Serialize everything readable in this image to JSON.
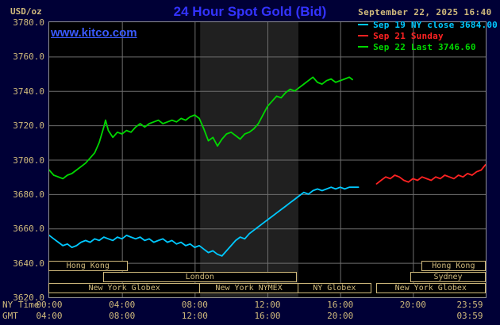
{
  "colors": {
    "bg": "#000036",
    "plot_bg": "#000000",
    "band": "#202020",
    "grid": "#6e6e6e",
    "tan": "#d0ba7c",
    "border_grey": "#909090",
    "title_blue": "#3333ff",
    "link_blue": "#3a5aff"
  },
  "header": {
    "units_label": "USD/oz",
    "title": "24 Hour Spot Gold (Bid)",
    "datetime": "September 22, 2025 16:40",
    "watermark": "www.kitco.com"
  },
  "axes": {
    "y_ticks": [
      {
        "value": 3780,
        "label": "3780.0"
      },
      {
        "value": 3760,
        "label": "3760.0"
      },
      {
        "value": 3740,
        "label": "3740.0"
      },
      {
        "value": 3720,
        "label": "3720.0"
      },
      {
        "value": 3700,
        "label": "3700.0"
      },
      {
        "value": 3680,
        "label": "3680.0"
      },
      {
        "value": 3660,
        "label": "3660.0"
      },
      {
        "value": 3640,
        "label": "3640.0"
      },
      {
        "value": 3620,
        "label": "3620.0"
      }
    ],
    "x_rows": [
      {
        "label": "NY Time",
        "ticks": [
          {
            "hour": 0,
            "text": "00:00"
          },
          {
            "hour": 4,
            "text": "04:00"
          },
          {
            "hour": 8,
            "text": "08:00"
          },
          {
            "hour": 12,
            "text": "12:00"
          },
          {
            "hour": 16,
            "text": "16:00"
          },
          {
            "hour": 20,
            "text": "20:00"
          },
          {
            "hour": 23.983,
            "text": "23:59"
          }
        ]
      },
      {
        "label": "GMT",
        "ticks": [
          {
            "hour": 0,
            "text": "04:00"
          },
          {
            "hour": 4,
            "text": "08:00"
          },
          {
            "hour": 8,
            "text": "12:00"
          },
          {
            "hour": 12,
            "text": "16:00"
          },
          {
            "hour": 16,
            "text": "20:00"
          },
          {
            "hour": 23.983,
            "text": "03:59"
          }
        ]
      }
    ]
  },
  "sessions": {
    "rows": [
      [
        {
          "label": "Hong Kong",
          "start": 0,
          "end": 4.3
        },
        {
          "label": "Hong Kong",
          "start": 20.5,
          "end": 24
        }
      ],
      [
        {
          "label": "London",
          "start": 3.0,
          "end": 13.6
        },
        {
          "label": "Sydney",
          "start": 19.9,
          "end": 24
        }
      ],
      [
        {
          "label": "New York Globex",
          "start": 0,
          "end": 8.3
        },
        {
          "label": "New York NYMEX",
          "start": 8.3,
          "end": 13.7
        },
        {
          "label": "NY Globex",
          "start": 13.7,
          "end": 17.7
        },
        {
          "label": "New York Globex",
          "start": 18.0,
          "end": 24
        }
      ]
    ]
  },
  "chart_data": {
    "type": "line",
    "title": "24 Hour Spot Gold (Bid)",
    "x_axis": "time of day (NY), hours 0-24",
    "ylabel": "USD/oz",
    "xlim": [
      0,
      24
    ],
    "ylim": [
      3620,
      3780
    ],
    "x_gridline_hours": [
      4,
      8,
      12,
      16,
      20
    ],
    "session_band_hours": [
      8.3,
      13.7
    ],
    "legend_position": "top-right",
    "series": [
      {
        "name": "Sep 19 NY close 3684.00",
        "color": "#00c8ff",
        "points": [
          [
            0,
            3656
          ],
          [
            0.25,
            3654
          ],
          [
            0.5,
            3652
          ],
          [
            0.75,
            3650
          ],
          [
            1,
            3651
          ],
          [
            1.25,
            3649
          ],
          [
            1.5,
            3650
          ],
          [
            1.75,
            3652
          ],
          [
            2,
            3653
          ],
          [
            2.25,
            3652
          ],
          [
            2.5,
            3654
          ],
          [
            2.75,
            3653
          ],
          [
            3,
            3655
          ],
          [
            3.25,
            3654
          ],
          [
            3.5,
            3653
          ],
          [
            3.75,
            3655
          ],
          [
            4,
            3654
          ],
          [
            4.25,
            3656
          ],
          [
            4.5,
            3655
          ],
          [
            4.75,
            3654
          ],
          [
            5,
            3655
          ],
          [
            5.25,
            3653
          ],
          [
            5.5,
            3654
          ],
          [
            5.75,
            3652
          ],
          [
            6,
            3653
          ],
          [
            6.25,
            3654
          ],
          [
            6.5,
            3652
          ],
          [
            6.75,
            3653
          ],
          [
            7,
            3651
          ],
          [
            7.25,
            3652
          ],
          [
            7.5,
            3650
          ],
          [
            7.75,
            3651
          ],
          [
            8,
            3649
          ],
          [
            8.25,
            3650
          ],
          [
            8.5,
            3648
          ],
          [
            8.75,
            3646
          ],
          [
            9,
            3647
          ],
          [
            9.25,
            3645
          ],
          [
            9.5,
            3644
          ],
          [
            9.75,
            3647
          ],
          [
            10,
            3650
          ],
          [
            10.25,
            3653
          ],
          [
            10.5,
            3655
          ],
          [
            10.75,
            3654
          ],
          [
            11,
            3657
          ],
          [
            11.25,
            3659
          ],
          [
            11.5,
            3661
          ],
          [
            11.75,
            3663
          ],
          [
            12,
            3665
          ],
          [
            12.25,
            3667
          ],
          [
            12.5,
            3669
          ],
          [
            12.75,
            3671
          ],
          [
            13,
            3673
          ],
          [
            13.25,
            3675
          ],
          [
            13.5,
            3677
          ],
          [
            13.75,
            3679
          ],
          [
            14,
            3681
          ],
          [
            14.25,
            3680
          ],
          [
            14.5,
            3682
          ],
          [
            14.75,
            3683
          ],
          [
            15,
            3682
          ],
          [
            15.25,
            3683
          ],
          [
            15.5,
            3684
          ],
          [
            15.75,
            3683
          ],
          [
            16,
            3684
          ],
          [
            16.25,
            3683
          ],
          [
            16.5,
            3684
          ],
          [
            17,
            3684
          ]
        ]
      },
      {
        "name": "Sep 21 Sunday",
        "color": "#ff2222",
        "points": [
          [
            18,
            3686
          ],
          [
            18.25,
            3688
          ],
          [
            18.5,
            3690
          ],
          [
            18.75,
            3689
          ],
          [
            19,
            3691
          ],
          [
            19.25,
            3690
          ],
          [
            19.5,
            3688
          ],
          [
            19.75,
            3687
          ],
          [
            20,
            3689
          ],
          [
            20.25,
            3688
          ],
          [
            20.5,
            3690
          ],
          [
            20.75,
            3689
          ],
          [
            21,
            3688
          ],
          [
            21.25,
            3690
          ],
          [
            21.5,
            3689
          ],
          [
            21.75,
            3691
          ],
          [
            22,
            3690
          ],
          [
            22.25,
            3689
          ],
          [
            22.5,
            3691
          ],
          [
            22.75,
            3690
          ],
          [
            23,
            3692
          ],
          [
            23.25,
            3691
          ],
          [
            23.5,
            3693
          ],
          [
            23.75,
            3694
          ],
          [
            23.983,
            3697
          ]
        ]
      },
      {
        "name": "Sep 22 Last 3746.60",
        "color": "#00d800",
        "points": [
          [
            0,
            3694
          ],
          [
            0.25,
            3691
          ],
          [
            0.5,
            3690
          ],
          [
            0.75,
            3689
          ],
          [
            1,
            3691
          ],
          [
            1.25,
            3692
          ],
          [
            1.5,
            3694
          ],
          [
            1.75,
            3696
          ],
          [
            2,
            3698
          ],
          [
            2.25,
            3701
          ],
          [
            2.5,
            3704
          ],
          [
            2.75,
            3710
          ],
          [
            3,
            3719
          ],
          [
            3.1,
            3723
          ],
          [
            3.25,
            3717
          ],
          [
            3.5,
            3713
          ],
          [
            3.75,
            3716
          ],
          [
            4,
            3715
          ],
          [
            4.25,
            3717
          ],
          [
            4.5,
            3716
          ],
          [
            4.75,
            3719
          ],
          [
            5,
            3721
          ],
          [
            5.25,
            3719
          ],
          [
            5.5,
            3721
          ],
          [
            5.75,
            3722
          ],
          [
            6,
            3723
          ],
          [
            6.25,
            3721
          ],
          [
            6.5,
            3722
          ],
          [
            6.75,
            3723
          ],
          [
            7,
            3722
          ],
          [
            7.25,
            3724
          ],
          [
            7.5,
            3723
          ],
          [
            7.75,
            3725
          ],
          [
            8,
            3726
          ],
          [
            8.25,
            3724
          ],
          [
            8.5,
            3718
          ],
          [
            8.75,
            3711
          ],
          [
            9,
            3713
          ],
          [
            9.25,
            3708
          ],
          [
            9.5,
            3712
          ],
          [
            9.75,
            3715
          ],
          [
            10,
            3716
          ],
          [
            10.25,
            3714
          ],
          [
            10.5,
            3712
          ],
          [
            10.75,
            3715
          ],
          [
            11,
            3716
          ],
          [
            11.25,
            3718
          ],
          [
            11.5,
            3721
          ],
          [
            11.75,
            3726
          ],
          [
            12,
            3731
          ],
          [
            12.25,
            3734
          ],
          [
            12.5,
            3737
          ],
          [
            12.75,
            3736
          ],
          [
            13,
            3739
          ],
          [
            13.25,
            3741
          ],
          [
            13.5,
            3740
          ],
          [
            13.75,
            3742
          ],
          [
            14,
            3744
          ],
          [
            14.25,
            3746
          ],
          [
            14.5,
            3748
          ],
          [
            14.75,
            3745
          ],
          [
            15,
            3744
          ],
          [
            15.25,
            3746
          ],
          [
            15.5,
            3747
          ],
          [
            15.75,
            3745
          ],
          [
            16,
            3746
          ],
          [
            16.25,
            3747
          ],
          [
            16.5,
            3748
          ],
          [
            16.67,
            3746.6
          ]
        ]
      }
    ]
  }
}
